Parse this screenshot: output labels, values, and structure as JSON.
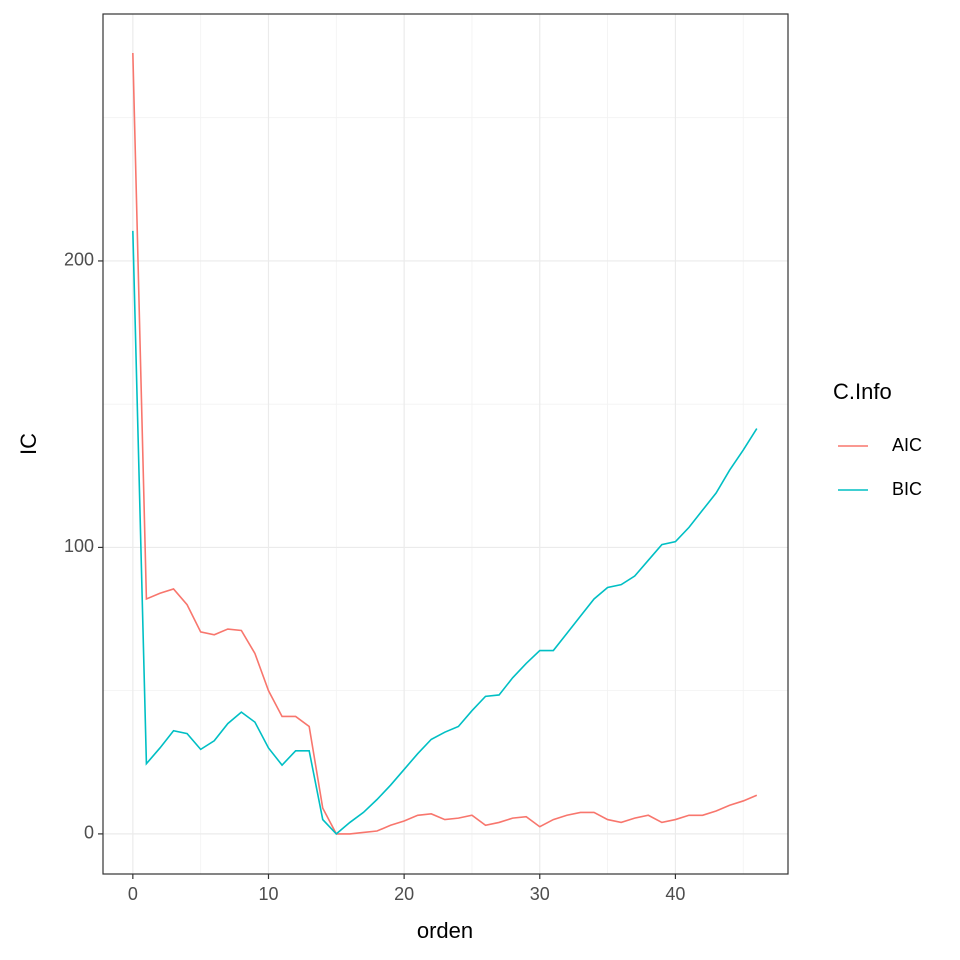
{
  "chart_data": {
    "type": "line",
    "x_label": "orden",
    "y_label": "IC",
    "legend_title": "C.Info",
    "legend_position": "right",
    "x": [
      0,
      1,
      2,
      3,
      4,
      5,
      6,
      7,
      8,
      9,
      10,
      11,
      12,
      13,
      14,
      15,
      16,
      17,
      18,
      19,
      20,
      21,
      22,
      23,
      24,
      25,
      26,
      27,
      28,
      29,
      30,
      31,
      32,
      33,
      34,
      35,
      36,
      37,
      38,
      39,
      40,
      41,
      42,
      43,
      44,
      45,
      46
    ],
    "series": [
      {
        "name": "AIC",
        "color": "#F8766D",
        "values": [
          272.6,
          82,
          84,
          85.5,
          80,
          70.5,
          69.5,
          71.5,
          71,
          63,
          50,
          41,
          41,
          37.5,
          9,
          0,
          0,
          0.5,
          1,
          3,
          4.5,
          6.5,
          7,
          5,
          5.5,
          6.5,
          3,
          4,
          5.5,
          6,
          2.5,
          5,
          6.5,
          7.5,
          7.5,
          5,
          4,
          5.5,
          6.5,
          4,
          5,
          6.5,
          6.5,
          8,
          10,
          11.5,
          13.5
        ]
      },
      {
        "name": "BIC",
        "color": "#00BFC4",
        "values": [
          210.5,
          24.5,
          30,
          36,
          35,
          29.5,
          32.5,
          38.5,
          42.5,
          39,
          30,
          24,
          29,
          29,
          5,
          0,
          4,
          7.5,
          12,
          17,
          22.5,
          28,
          33,
          35.5,
          37.5,
          43,
          48,
          48.5,
          54.5,
          59.5,
          64,
          64,
          70,
          76,
          82,
          86,
          87,
          90,
          95.5,
          101,
          102,
          107,
          113,
          119,
          127,
          134,
          141.5
        ]
      }
    ],
    "xlim": [
      -2.2,
      48.3
    ],
    "xticks": [
      0,
      10,
      20,
      30,
      40
    ],
    "xminorticks": [
      5,
      15,
      25,
      35,
      45
    ],
    "ylim": [
      -14,
      286.2
    ],
    "yticks": [
      0,
      100,
      200
    ],
    "yminorticks": [
      50,
      150,
      250
    ],
    "grid": true
  }
}
